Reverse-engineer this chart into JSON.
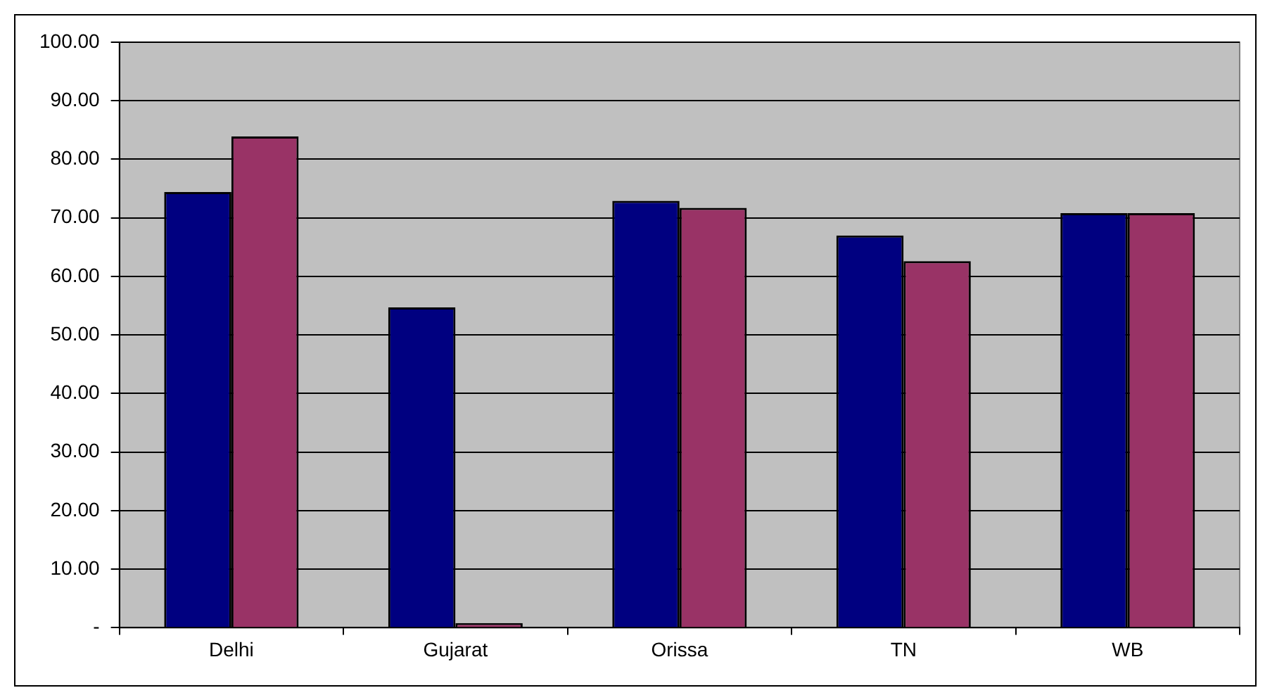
{
  "chart_data": {
    "type": "bar",
    "categories": [
      "Delhi",
      "Gujarat",
      "Orissa",
      "TN",
      "WB"
    ],
    "series": [
      {
        "color": "#000080",
        "values": [
          74.4,
          54.7,
          72.9,
          67.0,
          70.8
        ]
      },
      {
        "color": "#993366",
        "values": [
          83.9,
          0.8,
          71.7,
          62.6,
          70.8
        ]
      }
    ],
    "ylim": [
      0,
      100
    ],
    "yticks": [
      {
        "value": 0,
        "label": "-"
      },
      {
        "value": 10,
        "label": "10.00"
      },
      {
        "value": 20,
        "label": "20.00"
      },
      {
        "value": 30,
        "label": "30.00"
      },
      {
        "value": 40,
        "label": "40.00"
      },
      {
        "value": 50,
        "label": "50.00"
      },
      {
        "value": 60,
        "label": "60.00"
      },
      {
        "value": 70,
        "label": "70.00"
      },
      {
        "value": 80,
        "label": "80.00"
      },
      {
        "value": 90,
        "label": "90.00"
      },
      {
        "value": 100,
        "label": "100.00"
      }
    ],
    "grid": "y",
    "legend": false
  }
}
